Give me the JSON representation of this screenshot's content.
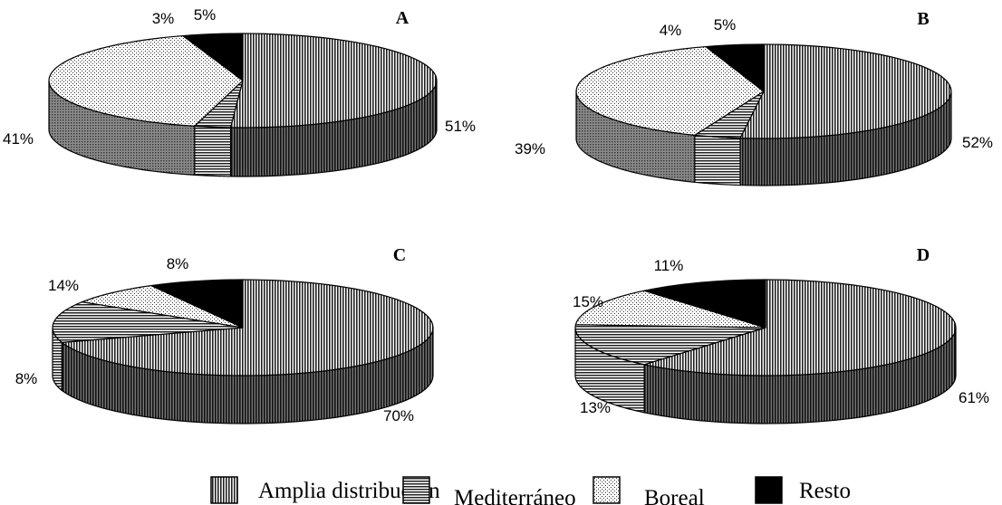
{
  "chart_data": {
    "type": "pie",
    "series_names": [
      "Amplia distribución",
      "Mediterráneo",
      "Boreal",
      "Resto"
    ],
    "colors": {
      "Amplia distribución": "#8a8a8a",
      "Mediterráneo": "#9a9a9a",
      "Boreal": "#e6e6e6",
      "Resto": "#000000"
    },
    "pies": [
      {
        "letter": "A",
        "values": [
          51,
          3,
          41,
          5
        ],
        "labels": [
          "51%",
          "3%",
          "41%",
          "5%"
        ]
      },
      {
        "letter": "B",
        "values": [
          52,
          4,
          39,
          5
        ],
        "labels": [
          "52%",
          "4%",
          "39%",
          "5%"
        ]
      },
      {
        "letter": "C",
        "values": [
          70,
          14,
          8,
          8
        ],
        "labels": [
          "70%",
          "14%",
          "8%",
          "8%"
        ]
      },
      {
        "letter": "D",
        "values": [
          61,
          15,
          13,
          11
        ],
        "labels": [
          "61%",
          "15%",
          "13%",
          "11%"
        ]
      }
    ],
    "legend": [
      "Amplia distribución",
      "Mediterráneo",
      "Boreal",
      "Resto"
    ],
    "legend_position": "bottom"
  }
}
